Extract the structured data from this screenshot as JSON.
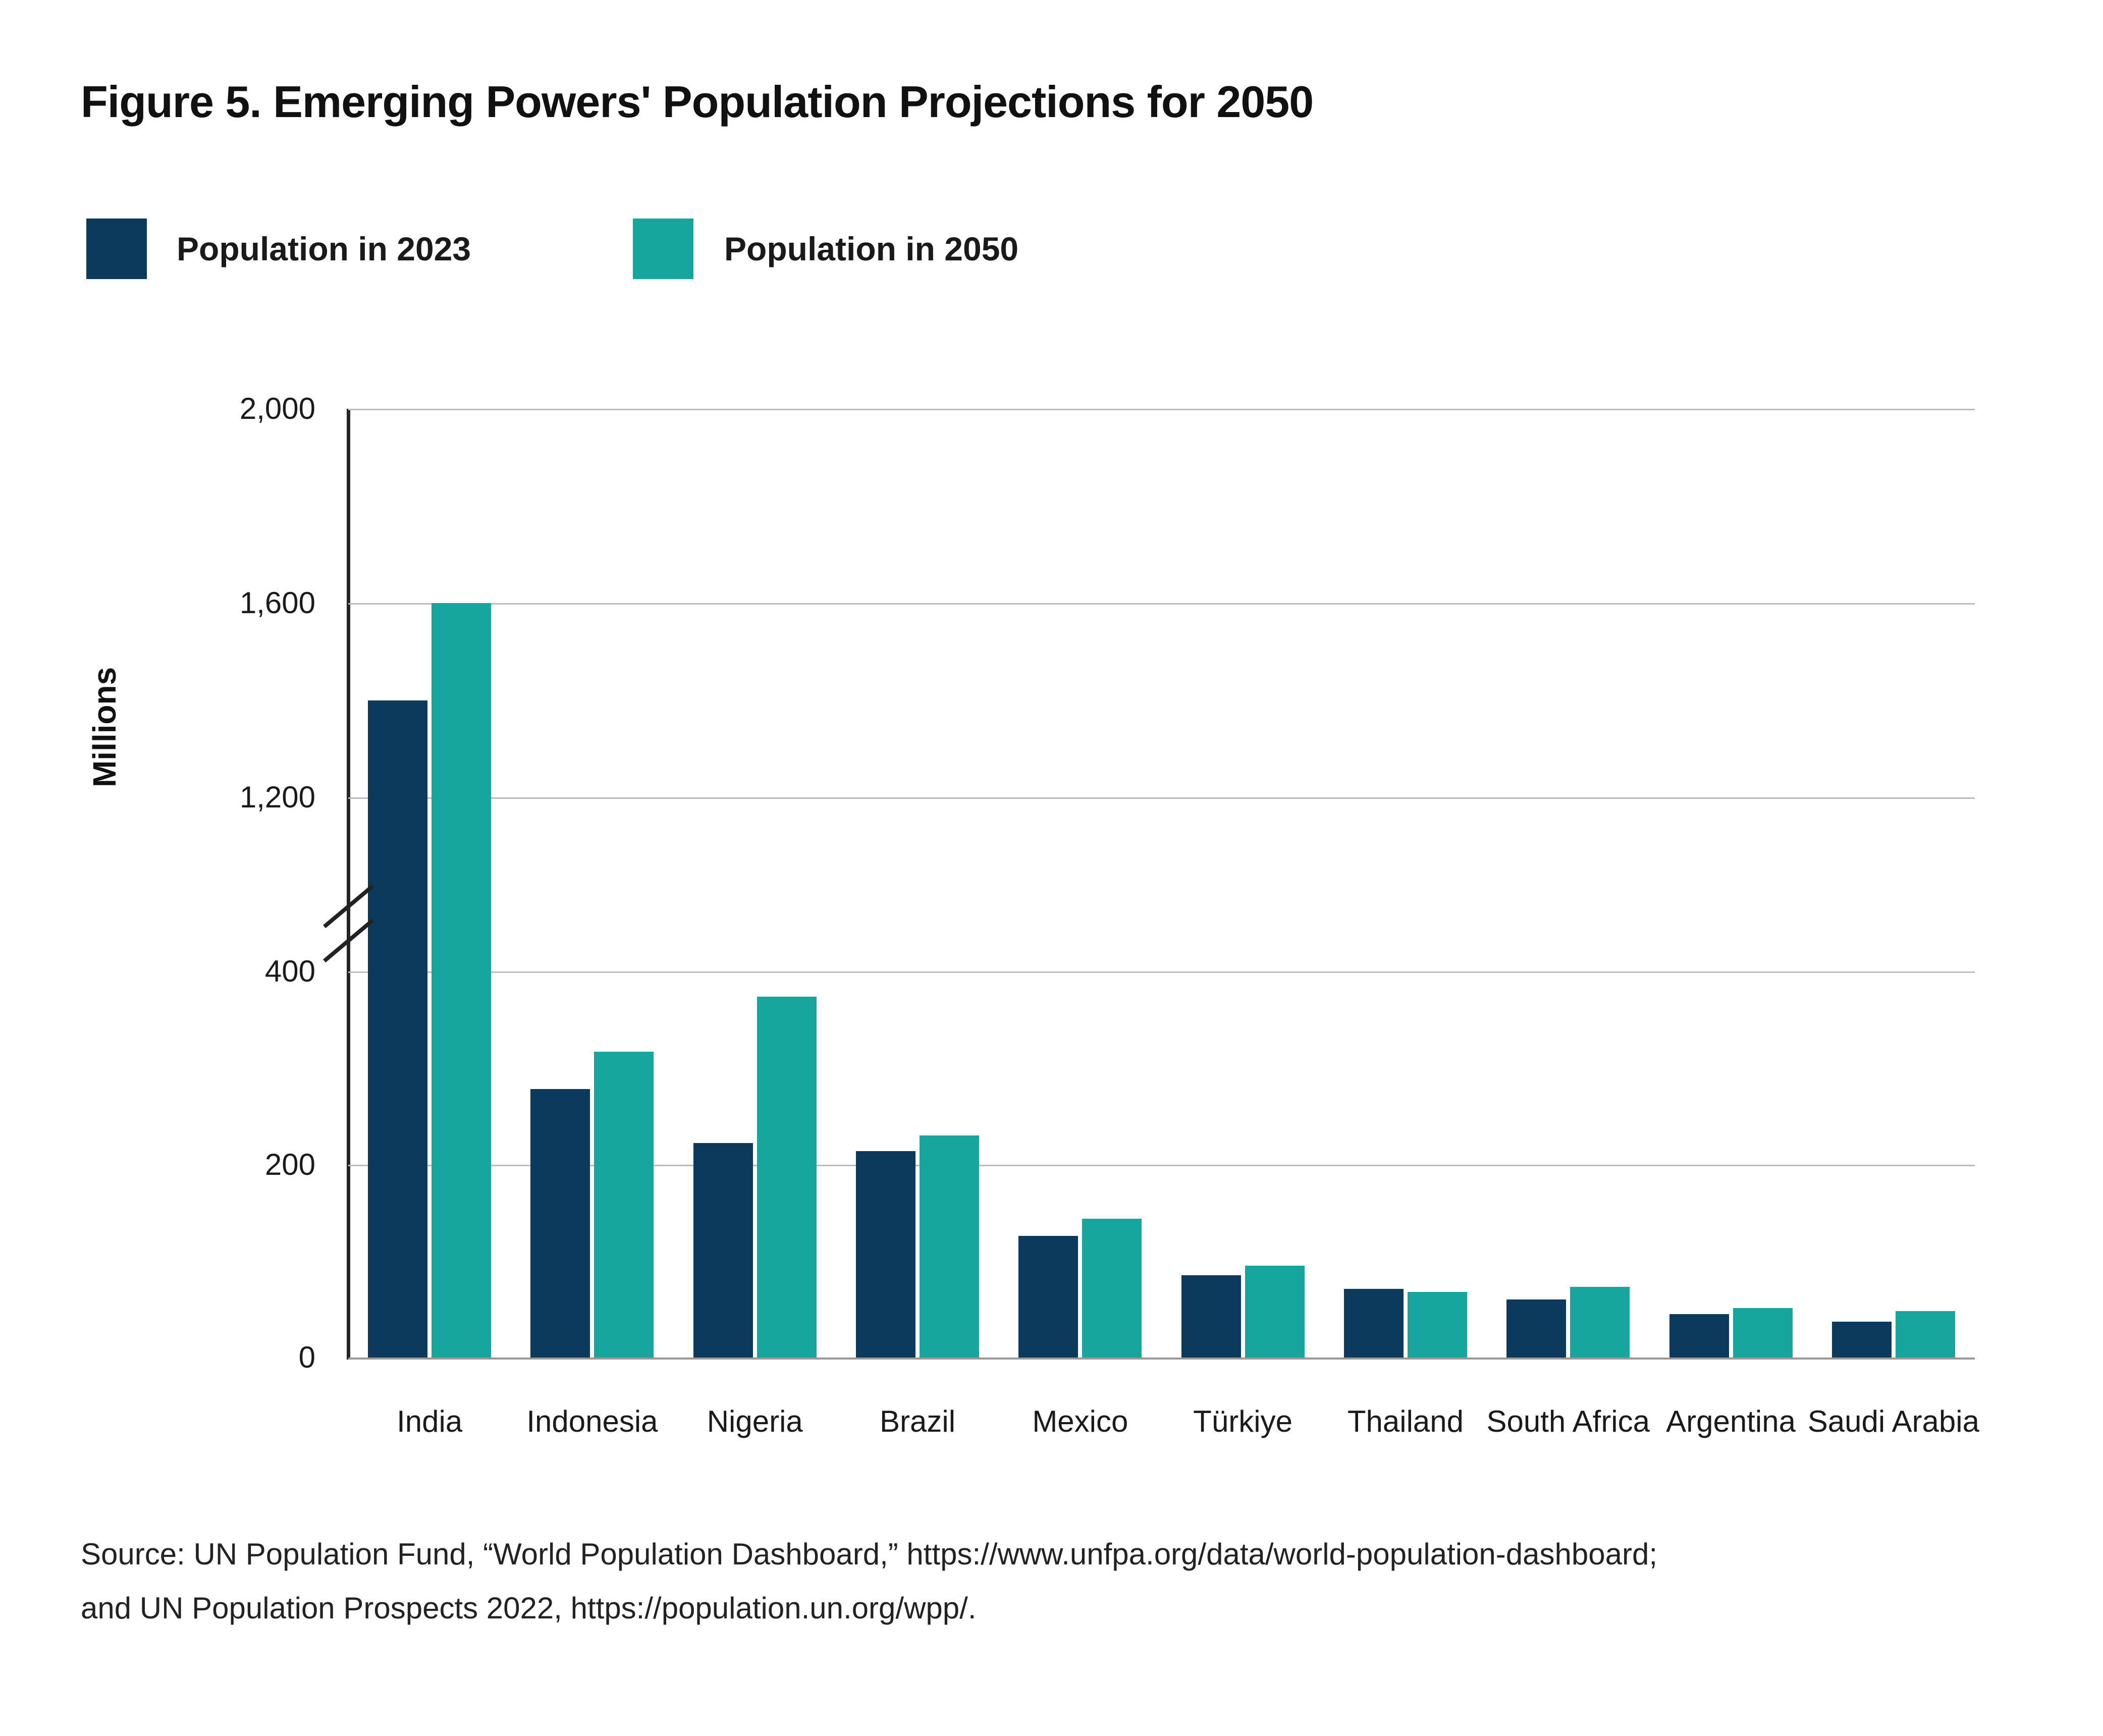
{
  "figure": {
    "title": "Figure 5. Emerging Powers' Population Projections for 2050"
  },
  "legend": {
    "items": [
      {
        "label": "Population in 2023",
        "color": "#0b3a5d"
      },
      {
        "label": "Population in 2050",
        "color": "#16a69e"
      }
    ]
  },
  "chart_data": {
    "type": "bar",
    "title": "Figure 5. Emerging Powers' Population Projections for 2050",
    "xlabel": "",
    "ylabel": "Millions",
    "categories": [
      "India",
      "Indonesia",
      "Nigeria",
      "Brazil",
      "Mexico",
      "Türkiye",
      "Thailand",
      "South Africa",
      "Argentina",
      "Saudi Arabia"
    ],
    "series": [
      {
        "name": "Population in 2023",
        "color": "#0b3a5d",
        "values": [
          1400,
          278,
          222,
          214,
          126,
          85,
          71,
          60,
          45,
          37
        ]
      },
      {
        "name": "Population in 2050",
        "color": "#16a69e",
        "values": [
          1600,
          317,
          374,
          230,
          144,
          95,
          68,
          73,
          51,
          48
        ]
      }
    ],
    "y_axis": {
      "unit": "Millions",
      "broken": true,
      "lower_ticks": [
        {
          "value": 0,
          "label": "0"
        },
        {
          "value": 200,
          "label": "200"
        },
        {
          "value": 400,
          "label": "400"
        }
      ],
      "upper_ticks": [
        {
          "value": 1200,
          "label": "1,200"
        },
        {
          "value": 1600,
          "label": "1,600"
        },
        {
          "value": 2000,
          "label": "2,000"
        }
      ],
      "break_between": [
        400,
        1200
      ],
      "ylim": [
        0,
        2000
      ]
    },
    "grid": true,
    "legend_position": "top-left"
  },
  "source": {
    "line1": "Source: UN Population Fund, “World Population Dashboard,” https://www.unfpa.org/data/world-population-dashboard;",
    "line2": "and UN Population Prospects 2022,  https://population.un.org/wpp/."
  },
  "colors": {
    "axis": "#252525",
    "baseline": "#999999",
    "gridline": "#bcbcbc",
    "text": "#1a1a1a"
  }
}
